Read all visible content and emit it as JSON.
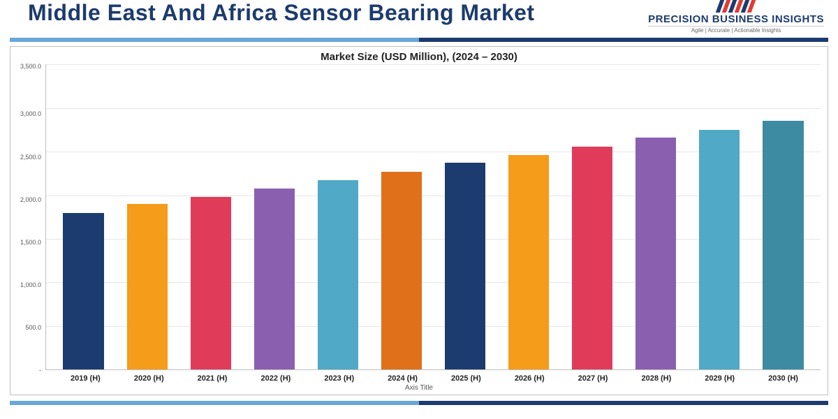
{
  "header": {
    "title": "Middle East And Africa Sensor Bearing Market",
    "logo": {
      "name": "PRECISION BUSINESS INSIGHTS",
      "tagline": "Agile | Accurate | Actionable Insights",
      "stripe_colors": [
        "#1c3b6e",
        "#e03c31",
        "#1c3b6e",
        "#e03c31",
        "#1c3b6e",
        "#e03c31"
      ]
    }
  },
  "chart": {
    "type": "bar",
    "title": "Market Size (USD Million), (2024 – 2030)",
    "axis_title": "Axis Title",
    "ymin": 0,
    "ymax": 3500,
    "ytick_step": 500,
    "yticks": [
      "3,500.0",
      "3,000.0",
      "2,500.0",
      "2,000.0",
      "1,500.0",
      "1,000.0",
      "500.0",
      "-"
    ],
    "categories": [
      "2019 (H)",
      "2020 (H)",
      "2021 (H)",
      "2022 (H)",
      "2023 (H)",
      "2024 (H)",
      "2025 (H)",
      "2026 (H)",
      "2027 (H)",
      "2028 (H)",
      "2029 (H)",
      "2030 (H)"
    ],
    "values": [
      1800,
      1900,
      1980,
      2080,
      2170,
      2270,
      2370,
      2460,
      2560,
      2660,
      2750,
      2850
    ],
    "bar_colors": [
      "#1c3b6e",
      "#f59c1a",
      "#e03c5a",
      "#8a5fb0",
      "#4fa9c7",
      "#e0701a",
      "#1c3b6e",
      "#f59c1a",
      "#e03c5a",
      "#8a5fb0",
      "#4fa9c7",
      "#3d8ba3"
    ],
    "background_color": "#ffffff",
    "grid_color": "#e6e6e6",
    "border_color": "#bfbfbf",
    "title_fontsize": 15,
    "xlabel_fontsize": 11,
    "ylabel_fontsize": 9,
    "bar_width_ratio": 0.64
  },
  "accent_band": {
    "left_color": "#6aa6d6",
    "right_color": "#1c3b6e"
  }
}
